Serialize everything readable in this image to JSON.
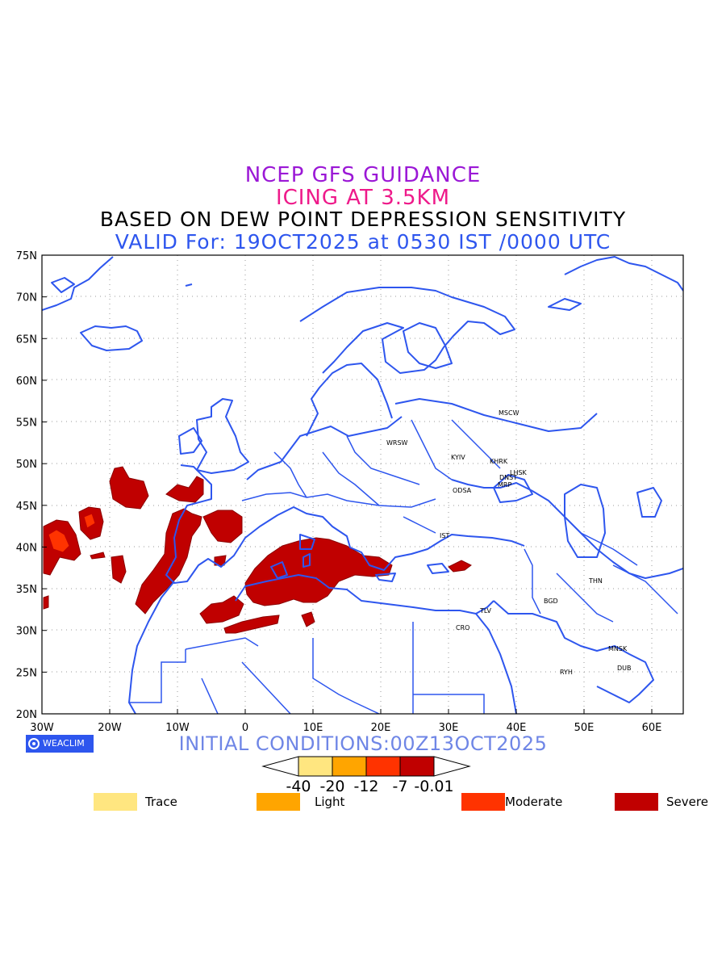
{
  "titles": {
    "line1": "NCEP GFS GUIDANCE",
    "line2": "ICING AT 3.5KM",
    "line3": "BASED ON DEW POINT DEPRESSION SENSITIVITY",
    "line4": "VALID For: 19OCT2025 at 0530 IST /0000 UTC"
  },
  "axes": {
    "lat_labels": [
      "75N",
      "70N",
      "65N",
      "60N",
      "55N",
      "50N",
      "45N",
      "40N",
      "35N",
      "30N",
      "25N",
      "20N"
    ],
    "lon_labels": [
      "30W",
      "20W",
      "10W",
      "0",
      "10E",
      "20E",
      "30E",
      "40E",
      "50E",
      "60E"
    ]
  },
  "cities": [
    {
      "code": "MSCW"
    },
    {
      "code": "WRSW"
    },
    {
      "code": "KYIV"
    },
    {
      "code": "KHRK"
    },
    {
      "code": "LHSK"
    },
    {
      "code": "DNST"
    },
    {
      "code": "MRP"
    },
    {
      "code": "ODSA"
    },
    {
      "code": "IST"
    },
    {
      "code": "THN"
    },
    {
      "code": "BGD"
    },
    {
      "code": "TLV"
    },
    {
      "code": "CRO"
    },
    {
      "code": "MNSK"
    },
    {
      "code": "DUB"
    },
    {
      "code": "RYH"
    }
  ],
  "badge": "WEACLIM",
  "initial_conditions": "INITIAL CONDITIONS:00Z13OCT2025",
  "colorbar": {
    "labels": [
      "-40",
      "-20",
      "-12",
      "-7",
      "-0.01"
    ],
    "colors": [
      "#ffe680",
      "#ffa500",
      "#ff3300",
      "#c00000"
    ]
  },
  "levels": [
    {
      "name": "Trace",
      "color": "#ffe680"
    },
    {
      "name": "Light",
      "color": "#ffa500"
    },
    {
      "name": "Moderate",
      "color": "#ff3300"
    },
    {
      "name": "Severe",
      "color": "#c00000"
    }
  ],
  "colors": {
    "coast": "#2e56ee",
    "severe": "#c00000",
    "moderate": "#ff3300"
  }
}
